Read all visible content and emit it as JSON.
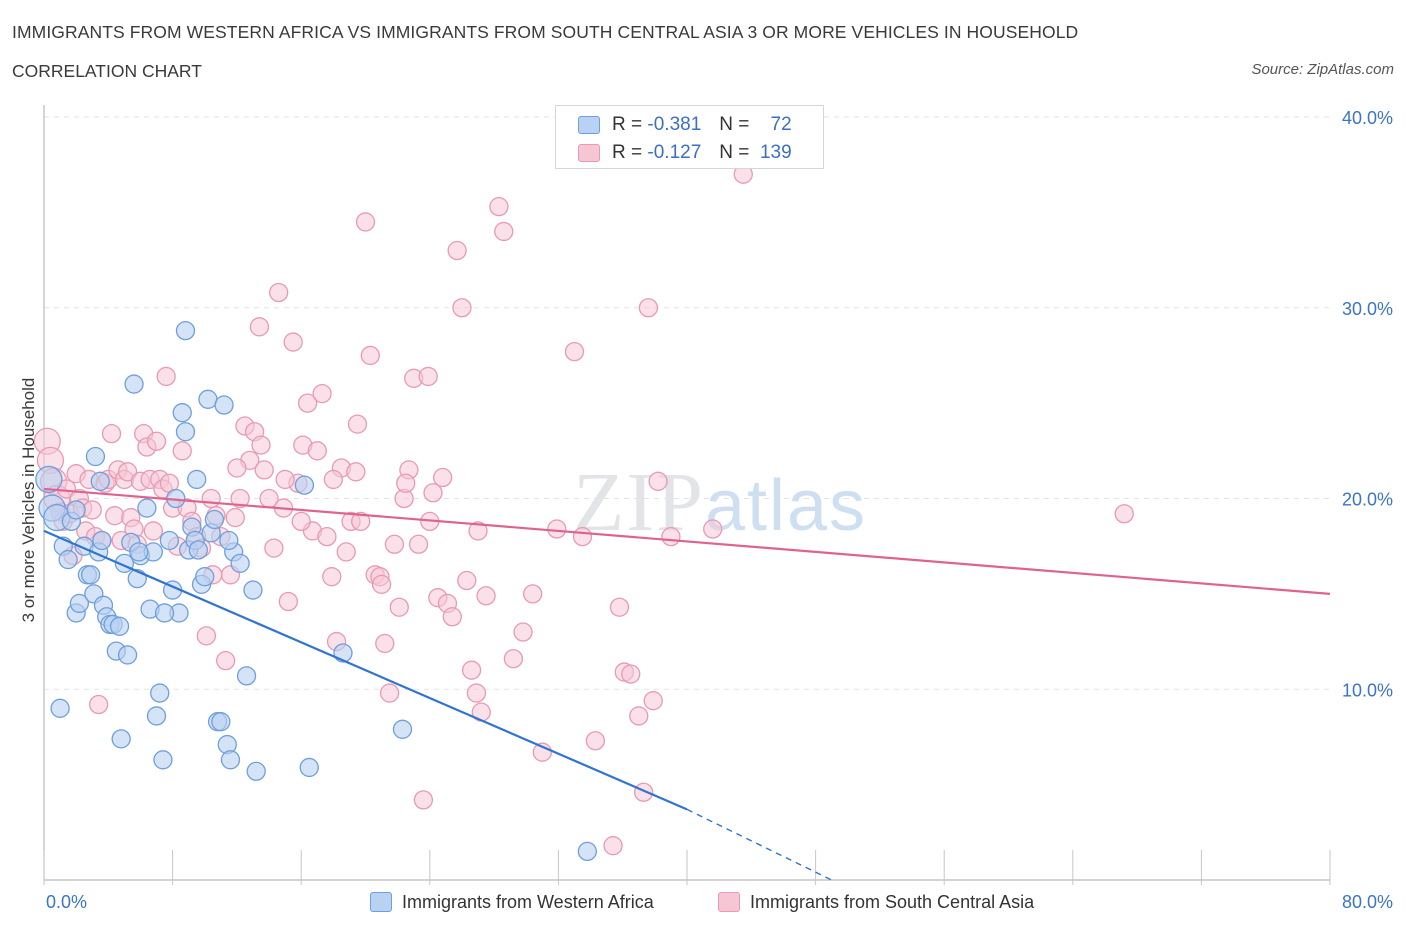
{
  "header": {
    "title": "IMMIGRANTS FROM WESTERN AFRICA VS IMMIGRANTS FROM SOUTH CENTRAL ASIA 3 OR MORE VEHICLES IN HOUSEHOLD",
    "subtitle": "CORRELATION CHART",
    "source": "Source: ZipAtlas.com"
  },
  "legend": {
    "r_label": "R =",
    "n_label": "N =",
    "blue": {
      "r": "-0.381",
      "n": "72"
    },
    "pink": {
      "r": "-0.127",
      "n": "139"
    }
  },
  "colors": {
    "blue_fill": "#b9d1f2",
    "blue_stroke": "#6e9fdc",
    "blue_line": "#2f74d0",
    "pink_fill": "#f6c6d5",
    "pink_stroke": "#e89ab2",
    "pink_line": "#e0628f",
    "tick_label": "#3b74c8",
    "grid": "#e3e3e3"
  },
  "chart_data": {
    "type": "scatter",
    "xlabel": "",
    "ylabel": "3 or more Vehicles in Household",
    "xlim": [
      0,
      80
    ],
    "ylim": [
      0,
      40
    ],
    "x_tick_labels": [
      "0.0%",
      "80.0%"
    ],
    "y_ticks": [
      10,
      20,
      30,
      40
    ],
    "y_tick_labels": [
      "10.0%",
      "20.0%",
      "30.0%",
      "40.0%"
    ],
    "grid": true,
    "legend_position": "top-center",
    "watermark": "ZIPatlas",
    "series": [
      {
        "name": "Immigrants from Western Africa",
        "color": "blue",
        "trend": {
          "x": [
            0,
            40
          ],
          "y": [
            18.3,
            3.7
          ],
          "dashed_extension": {
            "x": [
              40,
              49
            ],
            "y": [
              3.7,
              0
            ]
          }
        },
        "points": [
          [
            0.3,
            21.0
          ],
          [
            0.5,
            19.5
          ],
          [
            0.8,
            19.0
          ],
          [
            1.2,
            17.5
          ],
          [
            1.5,
            16.8
          ],
          [
            1.7,
            18.8
          ],
          [
            2.0,
            14.0
          ],
          [
            2.2,
            14.5
          ],
          [
            2.5,
            17.5
          ],
          [
            2.7,
            16.0
          ],
          [
            2.9,
            16.0
          ],
          [
            3.1,
            15.0
          ],
          [
            3.2,
            22.2
          ],
          [
            3.4,
            17.2
          ],
          [
            3.6,
            17.8
          ],
          [
            3.7,
            14.4
          ],
          [
            3.9,
            13.8
          ],
          [
            4.1,
            13.4
          ],
          [
            4.3,
            13.4
          ],
          [
            4.5,
            12.0
          ],
          [
            4.7,
            13.3
          ],
          [
            5.0,
            16.6
          ],
          [
            5.2,
            11.8
          ],
          [
            5.4,
            17.7
          ],
          [
            5.6,
            26.0
          ],
          [
            5.8,
            15.8
          ],
          [
            6.0,
            17.0
          ],
          [
            6.4,
            19.5
          ],
          [
            6.6,
            14.2
          ],
          [
            6.8,
            17.2
          ],
          [
            7.0,
            8.6
          ],
          [
            7.2,
            9.8
          ],
          [
            7.4,
            6.3
          ],
          [
            7.8,
            17.8
          ],
          [
            8.0,
            15.2
          ],
          [
            8.2,
            20.0
          ],
          [
            8.4,
            14.0
          ],
          [
            8.6,
            24.5
          ],
          [
            8.8,
            28.8
          ],
          [
            9.0,
            17.3
          ],
          [
            9.2,
            18.5
          ],
          [
            9.4,
            17.8
          ],
          [
            9.6,
            17.3
          ],
          [
            9.8,
            15.5
          ],
          [
            10.0,
            15.9
          ],
          [
            10.2,
            25.2
          ],
          [
            10.4,
            18.2
          ],
          [
            10.6,
            18.9
          ],
          [
            10.8,
            8.3
          ],
          [
            11.0,
            8.3
          ],
          [
            11.2,
            24.9
          ],
          [
            11.4,
            7.1
          ],
          [
            11.6,
            6.3
          ],
          [
            11.8,
            17.2
          ],
          [
            12.2,
            16.6
          ],
          [
            12.6,
            10.7
          ],
          [
            13.2,
            5.7
          ],
          [
            16.2,
            20.7
          ],
          [
            16.5,
            5.9
          ],
          [
            18.6,
            11.9
          ],
          [
            1.0,
            9.0
          ],
          [
            2.0,
            19.4
          ],
          [
            3.5,
            20.9
          ],
          [
            4.8,
            7.4
          ],
          [
            5.9,
            17.2
          ],
          [
            7.5,
            14.0
          ],
          [
            8.8,
            23.5
          ],
          [
            9.5,
            21.0
          ],
          [
            11.5,
            17.8
          ],
          [
            13.0,
            15.2
          ],
          [
            22.3,
            7.9
          ],
          [
            33.8,
            1.5
          ]
        ]
      },
      {
        "name": "Immigrants from South Central Asia",
        "color": "pink",
        "trend": {
          "x": [
            0,
            80
          ],
          "y": [
            20.5,
            15.0
          ]
        },
        "points": [
          [
            0.2,
            23.0
          ],
          [
            0.4,
            22.0
          ],
          [
            0.6,
            20.9
          ],
          [
            0.8,
            20.0
          ],
          [
            1.0,
            19.3
          ],
          [
            1.2,
            18.8
          ],
          [
            1.4,
            20.5
          ],
          [
            1.6,
            19.2
          ],
          [
            1.8,
            17.0
          ],
          [
            2.0,
            21.3
          ],
          [
            2.2,
            20.0
          ],
          [
            2.4,
            19.5
          ],
          [
            2.6,
            18.3
          ],
          [
            2.8,
            21.0
          ],
          [
            3.0,
            19.4
          ],
          [
            3.2,
            18.0
          ],
          [
            3.4,
            9.2
          ],
          [
            3.6,
            17.8
          ],
          [
            3.8,
            20.8
          ],
          [
            4.0,
            21.0
          ],
          [
            4.2,
            23.4
          ],
          [
            4.4,
            19.1
          ],
          [
            4.6,
            21.5
          ],
          [
            4.8,
            17.8
          ],
          [
            5.0,
            21.0
          ],
          [
            5.2,
            21.4
          ],
          [
            5.4,
            19.0
          ],
          [
            5.6,
            18.4
          ],
          [
            5.8,
            17.6
          ],
          [
            6.0,
            20.9
          ],
          [
            6.2,
            23.4
          ],
          [
            6.4,
            22.7
          ],
          [
            6.6,
            21.0
          ],
          [
            6.8,
            18.3
          ],
          [
            7.0,
            23.0
          ],
          [
            7.2,
            21.0
          ],
          [
            7.4,
            20.5
          ],
          [
            7.6,
            26.4
          ],
          [
            7.8,
            20.8
          ],
          [
            8.0,
            19.5
          ],
          [
            8.3,
            17.5
          ],
          [
            8.6,
            22.5
          ],
          [
            8.9,
            19.5
          ],
          [
            9.2,
            18.8
          ],
          [
            9.5,
            18.0
          ],
          [
            9.8,
            17.4
          ],
          [
            10.1,
            12.8
          ],
          [
            10.4,
            20.0
          ],
          [
            10.7,
            19.1
          ],
          [
            11.0,
            18.0
          ],
          [
            11.3,
            11.5
          ],
          [
            11.6,
            16.0
          ],
          [
            11.9,
            19.0
          ],
          [
            12.2,
            20.0
          ],
          [
            12.5,
            23.8
          ],
          [
            12.8,
            22.0
          ],
          [
            13.1,
            23.5
          ],
          [
            13.4,
            29.0
          ],
          [
            13.7,
            21.5
          ],
          [
            14.0,
            20.0
          ],
          [
            14.3,
            17.4
          ],
          [
            14.6,
            30.8
          ],
          [
            14.9,
            19.5
          ],
          [
            15.2,
            14.6
          ],
          [
            15.5,
            28.2
          ],
          [
            15.8,
            20.8
          ],
          [
            16.1,
            22.8
          ],
          [
            16.4,
            25.0
          ],
          [
            16.7,
            18.3
          ],
          [
            17.0,
            22.5
          ],
          [
            17.3,
            25.5
          ],
          [
            17.6,
            18.0
          ],
          [
            17.9,
            15.9
          ],
          [
            18.2,
            12.5
          ],
          [
            18.5,
            21.6
          ],
          [
            18.8,
            17.2
          ],
          [
            19.1,
            18.8
          ],
          [
            19.4,
            21.4
          ],
          [
            19.7,
            18.8
          ],
          [
            20.0,
            34.5
          ],
          [
            20.3,
            27.5
          ],
          [
            20.6,
            16.0
          ],
          [
            20.9,
            15.9
          ],
          [
            21.2,
            12.4
          ],
          [
            21.5,
            9.8
          ],
          [
            21.8,
            17.6
          ],
          [
            22.1,
            14.3
          ],
          [
            22.4,
            20.0
          ],
          [
            22.7,
            21.5
          ],
          [
            23.0,
            26.3
          ],
          [
            23.3,
            17.6
          ],
          [
            23.6,
            4.2
          ],
          [
            23.9,
            26.4
          ],
          [
            24.2,
            20.3
          ],
          [
            24.5,
            14.8
          ],
          [
            24.8,
            21.1
          ],
          [
            25.1,
            14.5
          ],
          [
            25.4,
            13.8
          ],
          [
            25.7,
            33.0
          ],
          [
            26.0,
            30.0
          ],
          [
            26.3,
            15.7
          ],
          [
            26.6,
            11.0
          ],
          [
            26.9,
            9.8
          ],
          [
            27.2,
            8.8
          ],
          [
            27.5,
            14.9
          ],
          [
            28.3,
            35.3
          ],
          [
            28.6,
            34.0
          ],
          [
            29.2,
            11.6
          ],
          [
            29.8,
            13.0
          ],
          [
            30.4,
            15.0
          ],
          [
            31.0,
            6.7
          ],
          [
            31.9,
            18.4
          ],
          [
            33.0,
            27.7
          ],
          [
            33.5,
            18.0
          ],
          [
            34.3,
            7.3
          ],
          [
            35.4,
            1.8
          ],
          [
            35.8,
            14.3
          ],
          [
            36.1,
            10.9
          ],
          [
            36.5,
            10.8
          ],
          [
            37.0,
            8.6
          ],
          [
            37.3,
            4.6
          ],
          [
            37.6,
            30.0
          ],
          [
            37.9,
            9.4
          ],
          [
            38.2,
            20.9
          ],
          [
            39.0,
            18.0
          ],
          [
            41.6,
            18.4
          ],
          [
            43.5,
            37.0
          ],
          [
            67.2,
            19.2
          ],
          [
            13.5,
            22.8
          ],
          [
            15.0,
            21.0
          ],
          [
            16.0,
            18.8
          ],
          [
            18.0,
            21.0
          ],
          [
            19.5,
            23.9
          ],
          [
            21.0,
            15.5
          ],
          [
            22.5,
            20.8
          ],
          [
            24.0,
            18.8
          ],
          [
            27.0,
            18.3
          ],
          [
            10.5,
            16.0
          ],
          [
            12.0,
            21.6
          ]
        ]
      }
    ]
  },
  "bottom_legend": {
    "blue_label": "Immigrants from Western Africa",
    "pink_label": "Immigrants from South Central Asia"
  }
}
